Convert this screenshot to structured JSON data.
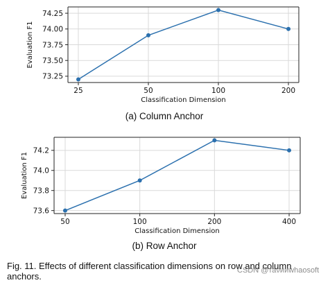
{
  "chart_data": [
    {
      "type": "line",
      "caption": "(a) Column Anchor",
      "xlabel": "Classification Dimension",
      "ylabel": "Evaluation F1",
      "categories": [
        "25",
        "50",
        "100",
        "200"
      ],
      "series": [
        {
          "values": [
            73.2,
            73.9,
            74.3,
            74.0
          ]
        }
      ],
      "ylim": [
        73.15,
        74.35
      ],
      "yticks": [
        73.25,
        73.5,
        73.75,
        74.0,
        74.25
      ],
      "ytick_labels": [
        "73.25",
        "73.50",
        "73.75",
        "74.00",
        "74.25"
      ],
      "grid": true,
      "color": "#2b70ae"
    },
    {
      "type": "line",
      "caption": "(b) Row Anchor",
      "xlabel": "Classification Dimension",
      "ylabel": "Evaluation F1",
      "categories": [
        "50",
        "100",
        "200",
        "400"
      ],
      "series": [
        {
          "values": [
            73.6,
            73.9,
            74.3,
            74.2
          ]
        }
      ],
      "ylim": [
        73.57,
        74.33
      ],
      "yticks": [
        73.6,
        73.8,
        74.0,
        74.2
      ],
      "ytick_labels": [
        "73.6",
        "73.8",
        "74.0",
        "74.2"
      ],
      "grid": true,
      "color": "#2b70ae"
    }
  ],
  "figure_caption": "Fig. 11. Effects of different classification dimensions on row and column anchors.",
  "watermark": "CSDN @таνииwhaosoft"
}
